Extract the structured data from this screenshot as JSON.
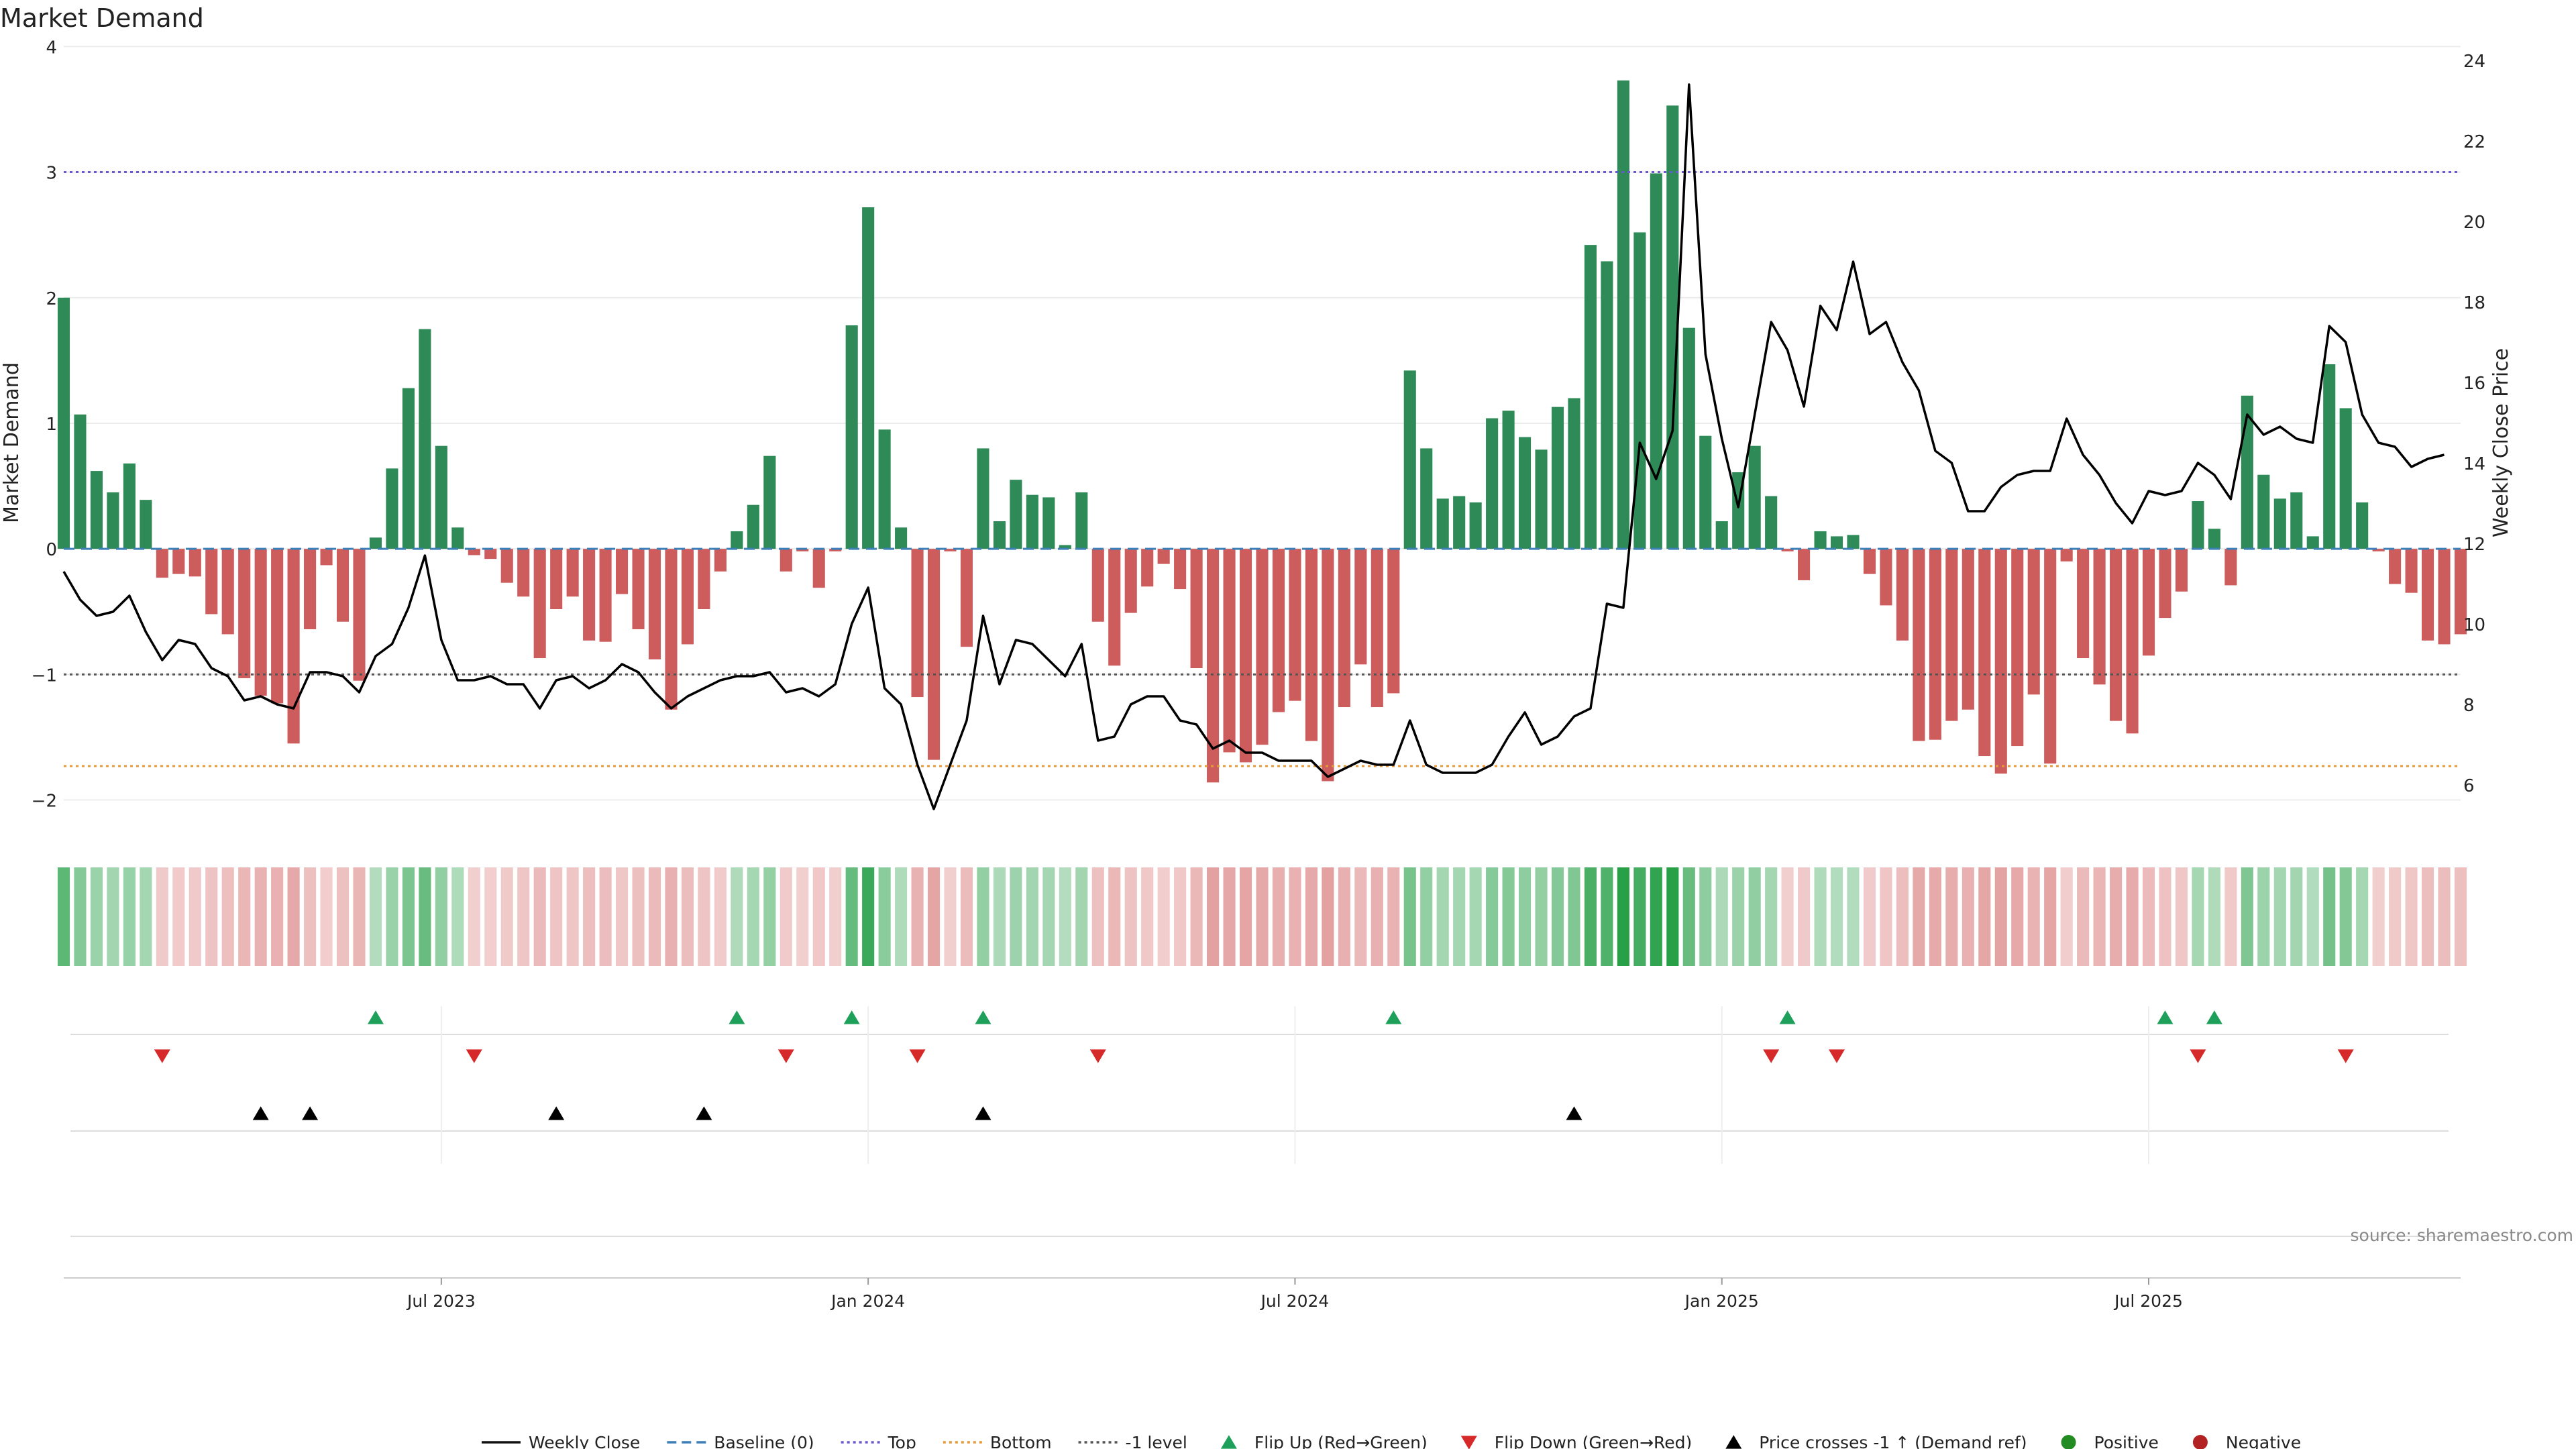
{
  "chart_data": {
    "type": "bar",
    "title": "Market Demand",
    "ylabel": "Market Demand",
    "ylabel_right": "Weekly Close Price",
    "ylim": [
      -2.2,
      4.05
    ],
    "ylim_right": [
      5.0,
      24.5
    ],
    "yticks": [
      -2,
      -1,
      0,
      1,
      2,
      3,
      4
    ],
    "yticks_right": [
      6,
      8,
      10,
      12,
      14,
      16,
      18,
      20,
      22,
      24
    ],
    "xticks": [
      "Jul 2023",
      "Jan 2024",
      "Jul 2024",
      "Jan 2025",
      "Jul 2025"
    ],
    "reference_lines": {
      "top": 3,
      "bottom": -1.73,
      "minus_one": -1
    },
    "grid": true,
    "legend_position": "bottom-center",
    "colors": {
      "positive": "#2e8b57",
      "negative": "#cd5c5c",
      "price": "#000000",
      "top": "#6a5acd",
      "bottom": "#e69a3a",
      "minus_one": "#555555",
      "baseline": "#3d7fb8",
      "flip_up": "#1fa05a",
      "flip_down": "#d62a2a"
    },
    "series": [
      {
        "name": "Market Demand",
        "values": [
          2.0,
          1.07,
          0.62,
          0.45,
          0.68,
          0.39,
          -0.23,
          -0.2,
          -0.22,
          -0.52,
          -0.68,
          -1.03,
          -1.17,
          -1.23,
          -1.55,
          -0.64,
          -0.13,
          -0.58,
          -1.05,
          0.09,
          0.64,
          1.28,
          1.75,
          0.82,
          0.17,
          -0.05,
          -0.08,
          -0.27,
          -0.38,
          -0.87,
          -0.48,
          -0.38,
          -0.73,
          -0.74,
          -0.36,
          -0.64,
          -0.88,
          -1.28,
          -0.76,
          -0.48,
          -0.18,
          0.14,
          0.35,
          0.74,
          -0.18,
          -0.02,
          -0.31,
          -0.02,
          1.78,
          2.72,
          0.95,
          0.17,
          -1.18,
          -1.68,
          -0.02,
          -0.78,
          0.8,
          0.22,
          0.55,
          0.43,
          0.41,
          0.03,
          0.45,
          -0.58,
          -0.93,
          -0.51,
          -0.3,
          -0.12,
          -0.32,
          -0.95,
          -1.86,
          -1.62,
          -1.7,
          -1.56,
          -1.3,
          -1.21,
          -1.53,
          -1.85,
          -1.26,
          -0.92,
          -1.26,
          -1.15,
          1.42,
          0.8,
          0.4,
          0.42,
          0.37,
          1.04,
          1.1,
          0.89,
          0.79,
          1.13,
          1.2,
          2.42,
          2.29,
          3.73,
          2.52,
          2.99,
          3.53,
          1.76,
          0.9,
          0.22,
          0.61,
          0.82,
          0.42,
          -0.02,
          -0.25,
          0.14,
          0.1,
          0.11,
          -0.2,
          -0.45,
          -0.73,
          -1.53,
          -1.52,
          -1.37,
          -1.28,
          -1.65,
          -1.79,
          -1.57,
          -1.16,
          -1.71,
          -0.1,
          -0.87,
          -1.08,
          -1.37,
          -1.47,
          -0.85,
          -0.55,
          -0.34,
          0.38,
          0.16,
          -0.29,
          1.22,
          0.59,
          0.4,
          0.45,
          0.1,
          1.47,
          1.12,
          0.37,
          -0.02,
          -0.28,
          -0.35,
          -0.73,
          -0.76,
          -0.68
        ]
      },
      {
        "name": "Weekly Close",
        "values": [
          11.3,
          10.6,
          10.2,
          10.3,
          10.7,
          9.8,
          9.1,
          9.6,
          9.5,
          8.9,
          8.7,
          8.1,
          8.2,
          8.0,
          7.9,
          8.8,
          8.8,
          8.7,
          8.3,
          9.2,
          9.5,
          10.4,
          11.7,
          9.6,
          8.6,
          8.6,
          8.7,
          8.5,
          8.5,
          7.9,
          8.6,
          8.7,
          8.4,
          8.6,
          9.0,
          8.8,
          8.3,
          7.9,
          8.2,
          8.4,
          8.6,
          8.7,
          8.7,
          8.8,
          8.3,
          8.4,
          8.2,
          8.5,
          10.0,
          10.9,
          8.4,
          8.0,
          6.5,
          5.4,
          6.5,
          7.6,
          10.2,
          8.5,
          9.6,
          9.5,
          9.1,
          8.7,
          9.5,
          7.1,
          7.2,
          8.0,
          8.2,
          8.2,
          7.6,
          7.5,
          6.9,
          7.1,
          6.8,
          6.8,
          6.6,
          6.6,
          6.6,
          6.2,
          6.4,
          6.6,
          6.5,
          6.5,
          7.6,
          6.5,
          6.3,
          6.3,
          6.3,
          6.5,
          7.2,
          7.8,
          7.0,
          7.2,
          7.7,
          7.9,
          10.5,
          10.4,
          14.5,
          13.6,
          14.8,
          23.4,
          16.7,
          14.6,
          12.9,
          15.2,
          17.5,
          16.8,
          15.4,
          17.9,
          17.3,
          19.0,
          17.2,
          17.5,
          16.5,
          15.8,
          14.3,
          14.0,
          12.8,
          12.8,
          13.4,
          13.7,
          13.8,
          13.8,
          15.1,
          14.2,
          13.7,
          13.0,
          12.5,
          13.3,
          13.2,
          13.3,
          14.0,
          13.7,
          13.1,
          15.2,
          14.7,
          14.9,
          14.6,
          14.5,
          17.4,
          17.0,
          15.2,
          14.5,
          14.4,
          13.9,
          14.1,
          14.2
        ]
      }
    ],
    "flip_up_idx": [
      19,
      41,
      48,
      56,
      81,
      105,
      128,
      131
    ],
    "flip_down_idx": [
      6,
      25,
      44,
      52,
      63,
      104,
      108,
      130,
      139
    ],
    "price_cross_idx": [
      12,
      15,
      30,
      39,
      56,
      92
    ],
    "legend": [
      {
        "label": "Weekly Close",
        "kind": "line-solid",
        "color": "#111111"
      },
      {
        "label": "Baseline (0)",
        "kind": "line-dash",
        "color": "#3d7fb8"
      },
      {
        "label": "Top",
        "kind": "line-dot",
        "color": "#6a5acd"
      },
      {
        "label": "Bottom",
        "kind": "line-dot",
        "color": "#e69a3a"
      },
      {
        "label": "-1 level",
        "kind": "line-dot",
        "color": "#555555"
      },
      {
        "label": "Flip Up (Red→Green)",
        "kind": "tri-up",
        "color": "#1fa05a"
      },
      {
        "label": "Flip Down (Green→Red)",
        "kind": "tri-down",
        "color": "#d62a2a"
      },
      {
        "label": "Price crosses -1 ↑ (Demand ref)",
        "kind": "tri-up",
        "color": "#000000"
      },
      {
        "label": "Positive",
        "kind": "dot",
        "color": "#228b22"
      },
      {
        "label": "Negative",
        "kind": "dot",
        "color": "#b22222"
      }
    ],
    "source": "source: sharemaestro.com"
  }
}
